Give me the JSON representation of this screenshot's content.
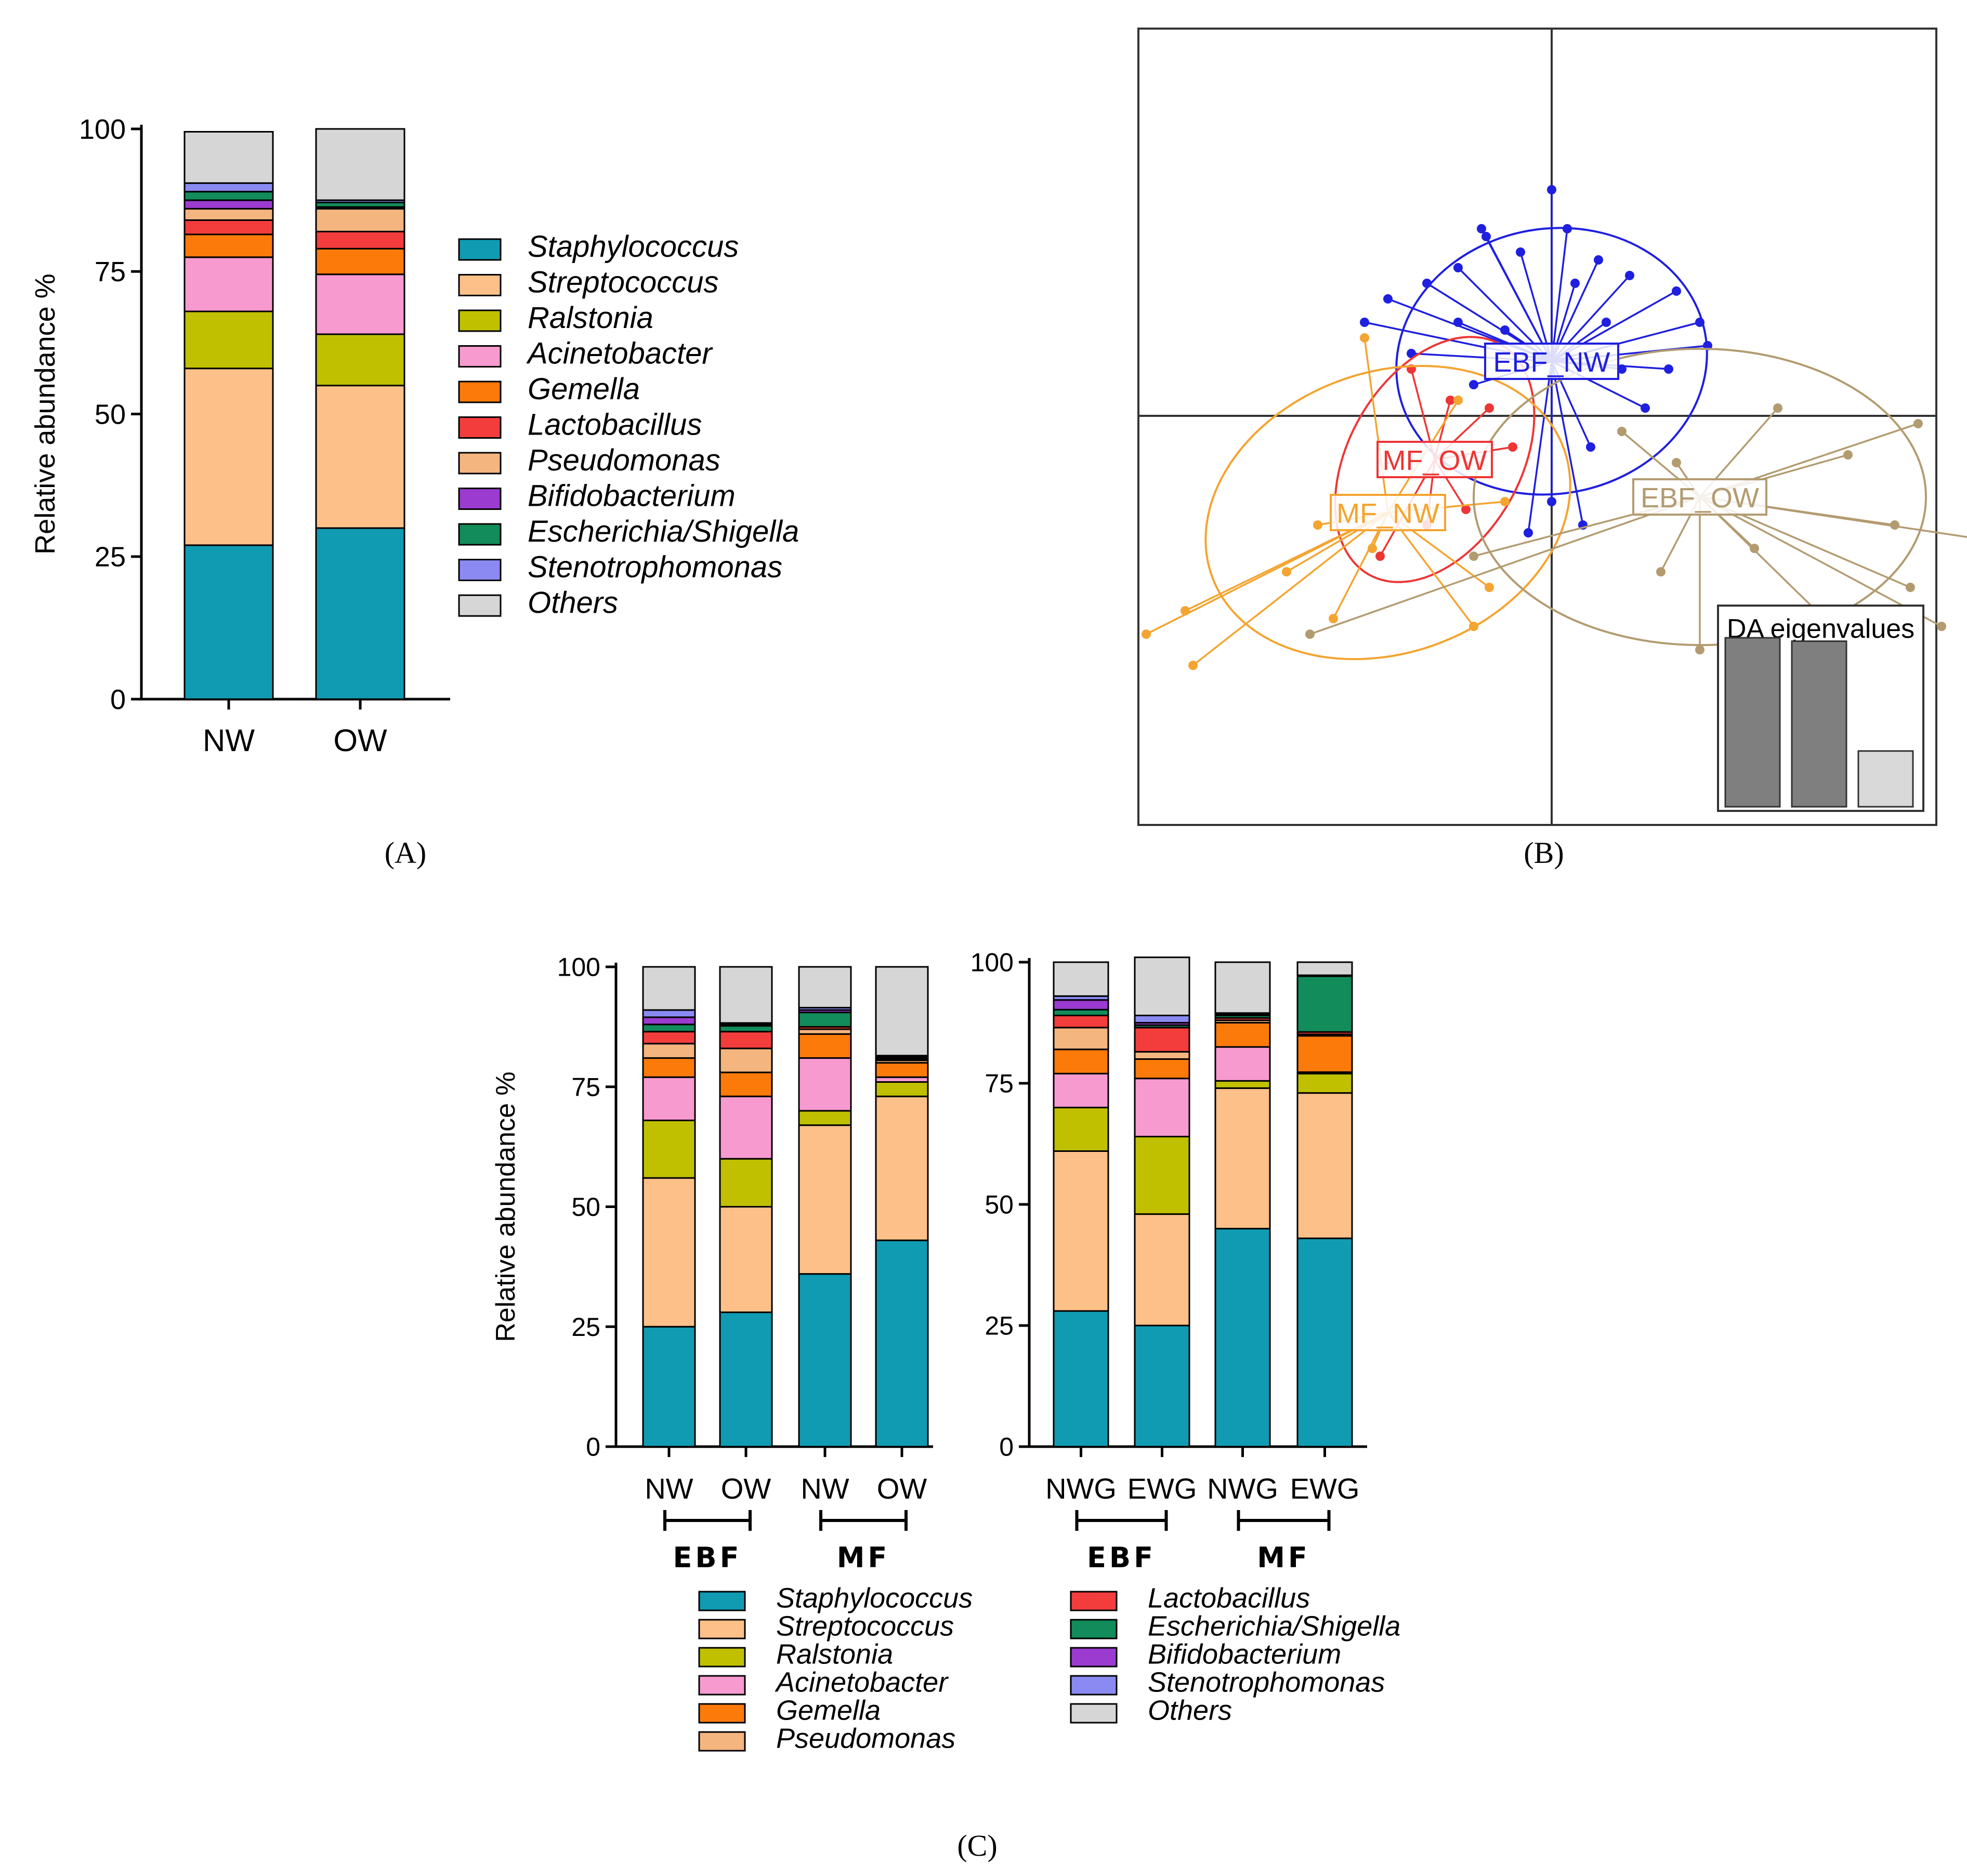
{
  "colors": {
    "Staphylococcus": "#109bb2",
    "Streptococcus": "#fdc088",
    "Ralstonia": "#c0c000",
    "Acinetobacter": "#f79ad0",
    "Gemella": "#fb7a0a",
    "Lactobacillus": "#f33d3d",
    "Pseudomonas": "#f4b57f",
    "Bifidobacterium": "#9b3bd0",
    "Escherichia/Shigella": "#128c5a",
    "Stenotrophomonas": "#8a8af2",
    "Others": "#d6d6d6"
  },
  "panel_labels": {
    "a": "(A)",
    "b": "(B)",
    "c": "(C)"
  },
  "chart_data": [
    {
      "id": "A",
      "type": "bar",
      "stacked": true,
      "ylabel": "Relative abundance %",
      "ylim": [
        0,
        100
      ],
      "yticks": [
        "0",
        "25",
        "50",
        "75",
        "100"
      ],
      "categories": [
        "NW",
        "OW"
      ],
      "series": [
        {
          "name": "Staphylococcus",
          "values": [
            27,
            30
          ]
        },
        {
          "name": "Streptococcus",
          "values": [
            31,
            25
          ]
        },
        {
          "name": "Ralstonia",
          "values": [
            10,
            9
          ]
        },
        {
          "name": "Acinetobacter",
          "values": [
            9.5,
            10.5
          ]
        },
        {
          "name": "Gemella",
          "values": [
            4,
            4.5
          ]
        },
        {
          "name": "Lactobacillus",
          "values": [
            2.5,
            3
          ]
        },
        {
          "name": "Pseudomonas",
          "values": [
            2,
            4
          ]
        },
        {
          "name": "Bifidobacterium",
          "values": [
            1.5,
            0.3
          ]
        },
        {
          "name": "Escherichia/Shigella",
          "values": [
            1.5,
            0.8
          ]
        },
        {
          "name": "Stenotrophomonas",
          "values": [
            1.5,
            0.4
          ]
        },
        {
          "name": "Others",
          "values": [
            9,
            12.5
          ]
        }
      ],
      "legend": [
        "Staphylococcus",
        "Streptococcus",
        "Ralstonia",
        "Acinetobacter",
        "Gemella",
        "Lactobacillus",
        "Pseudomonas",
        "Bifidobacterium",
        "Escherichia/Shigella",
        "Stenotrophomonas",
        "Others"
      ]
    },
    {
      "id": "B",
      "type": "scatter",
      "groups": [
        {
          "name": "EBF_NW",
          "color": "#1f1fe0",
          "center": [
            0,
            0.35
          ],
          "ellipse_rx": 1.0,
          "ellipse_ry": 0.85,
          "ellipse_rot": -10
        },
        {
          "name": "MF_OW",
          "color": "#ee3535",
          "center": [
            -0.75,
            -0.28
          ],
          "ellipse_rx": 0.55,
          "ellipse_ry": 0.85,
          "ellipse_rot": 30
        },
        {
          "name": "MF_NW",
          "color": "#f4a430",
          "center": [
            -1.05,
            -0.62
          ],
          "ellipse_rx": 1.2,
          "ellipse_ry": 0.9,
          "ellipse_rot": -20
        },
        {
          "name": "EBF_OW",
          "color": "#b39b70",
          "center": [
            0.95,
            -0.52
          ],
          "ellipse_rx": 1.45,
          "ellipse_ry": 0.95,
          "ellipse_rot": 0
        }
      ],
      "points": {
        "EBF_NW": [
          [
            0.0,
            1.45
          ],
          [
            -0.45,
            1.2
          ],
          [
            -0.42,
            1.15
          ],
          [
            -0.2,
            1.05
          ],
          [
            0.3,
            1.0
          ],
          [
            -1.2,
            0.6
          ],
          [
            -1.05,
            0.75
          ],
          [
            0.95,
            0.6
          ],
          [
            1.0,
            0.45
          ],
          [
            0.5,
            0.9
          ],
          [
            -0.6,
            0.95
          ],
          [
            0.15,
            0.85
          ],
          [
            -0.9,
            0.4
          ],
          [
            0.75,
            0.3
          ],
          [
            -0.3,
            0.55
          ],
          [
            0.35,
            0.6
          ],
          [
            0.6,
            0.05
          ],
          [
            -0.15,
            -0.75
          ],
          [
            0.2,
            -0.7
          ],
          [
            -0.5,
            0.2
          ],
          [
            0.8,
            0.8
          ],
          [
            -0.8,
            0.85
          ],
          [
            0.1,
            1.2
          ],
          [
            0.45,
            0.3
          ],
          [
            0.25,
            -0.2
          ],
          [
            -0.6,
            0.6
          ],
          [
            0.0,
            -0.55
          ]
        ],
        "MF_OW": [
          [
            -0.9,
            0.3
          ],
          [
            -1.1,
            -0.9
          ],
          [
            -0.55,
            -0.6
          ],
          [
            -0.8,
            -0.7
          ],
          [
            -0.4,
            0.05
          ],
          [
            -0.25,
            -0.2
          ],
          [
            -0.65,
            0.1
          ]
        ],
        "MF_NW": [
          [
            -2.6,
            -1.4
          ],
          [
            -2.3,
            -1.6
          ],
          [
            -2.35,
            -1.25
          ],
          [
            -0.5,
            -1.35
          ],
          [
            -0.4,
            -1.1
          ],
          [
            -1.4,
            -1.3
          ],
          [
            -1.15,
            -0.85
          ],
          [
            -0.3,
            -0.55
          ],
          [
            -1.2,
            0.5
          ],
          [
            -0.6,
            0.1
          ],
          [
            -1.5,
            -0.7
          ],
          [
            -1.7,
            -1.0
          ]
        ],
        "EBF_OW": [
          [
            1.9,
            -0.25
          ],
          [
            2.35,
            -0.05
          ],
          [
            3.15,
            -0.85
          ],
          [
            2.5,
            -1.35
          ],
          [
            1.8,
            -1.35
          ],
          [
            2.3,
            -1.1
          ],
          [
            0.95,
            -1.5
          ],
          [
            0.7,
            -1.0
          ],
          [
            -0.5,
            -0.9
          ],
          [
            -1.55,
            -1.4
          ],
          [
            1.3,
            -0.85
          ],
          [
            1.45,
            0.05
          ],
          [
            2.2,
            -0.7
          ],
          [
            0.45,
            -0.1
          ],
          [
            0.8,
            -0.3
          ]
        ]
      },
      "inset": {
        "title": "DA eigenvalues",
        "values": [
          1.0,
          0.98,
          0.33
        ],
        "colors": [
          "#7f7f7f",
          "#7f7f7f",
          "#d9d9d9"
        ]
      }
    },
    {
      "id": "C1",
      "type": "bar",
      "stacked": true,
      "ylabel": "Relative abundance %",
      "ylim": [
        0,
        100
      ],
      "yticks": [
        "0",
        "25",
        "50",
        "75",
        "100"
      ],
      "categories": [
        "NW",
        "OW",
        "NW",
        "OW"
      ],
      "groups": [
        {
          "name": "EBF",
          "members": [
            0,
            1
          ]
        },
        {
          "name": "MF",
          "members": [
            2,
            3
          ]
        }
      ],
      "series": [
        {
          "name": "Staphylococcus",
          "values": [
            25,
            28,
            36,
            43
          ]
        },
        {
          "name": "Streptococcus",
          "values": [
            31,
            22,
            31,
            30
          ]
        },
        {
          "name": "Ralstonia",
          "values": [
            12,
            10,
            3,
            3
          ]
        },
        {
          "name": "Acinetobacter",
          "values": [
            9,
            13,
            11,
            1
          ]
        },
        {
          "name": "Gemella",
          "values": [
            4,
            5,
            5,
            3
          ]
        },
        {
          "name": "Pseudomonas",
          "values": [
            3,
            5,
            1,
            0.5
          ]
        },
        {
          "name": "Lactobacillus",
          "values": [
            2.5,
            3.5,
            0.5,
            0.3
          ]
        },
        {
          "name": "Escherichia/Shigella",
          "values": [
            1.5,
            1.2,
            3,
            0.3
          ]
        },
        {
          "name": "Bifidobacterium",
          "values": [
            1.5,
            0.3,
            0.5,
            0.2
          ]
        },
        {
          "name": "Stenotrophomonas",
          "values": [
            1.5,
            0.3,
            0.5,
            0.2
          ]
        },
        {
          "name": "Others",
          "values": [
            9,
            11.7,
            8.5,
            18.5
          ]
        }
      ]
    },
    {
      "id": "C2",
      "type": "bar",
      "stacked": true,
      "ylim": [
        0,
        100
      ],
      "yticks": [
        "0",
        "25",
        "50",
        "75",
        "100"
      ],
      "categories": [
        "NWG",
        "EWG",
        "NWG",
        "EWG"
      ],
      "groups": [
        {
          "name": "EBF",
          "members": [
            0,
            1
          ]
        },
        {
          "name": "MF",
          "members": [
            2,
            3
          ]
        }
      ],
      "series": [
        {
          "name": "Staphylococcus",
          "values": [
            28,
            25,
            45,
            43
          ]
        },
        {
          "name": "Streptococcus",
          "values": [
            33,
            23,
            29,
            30
          ]
        },
        {
          "name": "Ralstonia",
          "values": [
            9,
            16,
            1.5,
            4
          ]
        },
        {
          "name": "Acinetobacter",
          "values": [
            7,
            12,
            7,
            0.3
          ]
        },
        {
          "name": "Gemella",
          "values": [
            5,
            4,
            5,
            7.5
          ]
        },
        {
          "name": "Pseudomonas",
          "values": [
            4.5,
            1.5,
            0.5,
            0.3
          ]
        },
        {
          "name": "Lactobacillus",
          "values": [
            2.5,
            5,
            0.5,
            0.5
          ]
        },
        {
          "name": "Escherichia/Shigella",
          "values": [
            1.2,
            0.5,
            0.5,
            11.5
          ]
        },
        {
          "name": "Bifidobacterium",
          "values": [
            2,
            0.5,
            0.3,
            0.1
          ]
        },
        {
          "name": "Stenotrophomonas",
          "values": [
            0.8,
            1.5,
            0.2,
            0.1
          ]
        },
        {
          "name": "Others",
          "values": [
            7,
            12,
            10.5,
            2.7
          ]
        }
      ],
      "legend_left": [
        "Staphylococcus",
        "Streptococcus",
        "Ralstonia",
        "Acinetobacter",
        "Gemella",
        "Pseudomonas"
      ],
      "legend_right": [
        "Lactobacillus",
        "Escherichia/Shigella",
        "Bifidobacterium",
        "Stenotrophomonas",
        "Others"
      ]
    }
  ]
}
